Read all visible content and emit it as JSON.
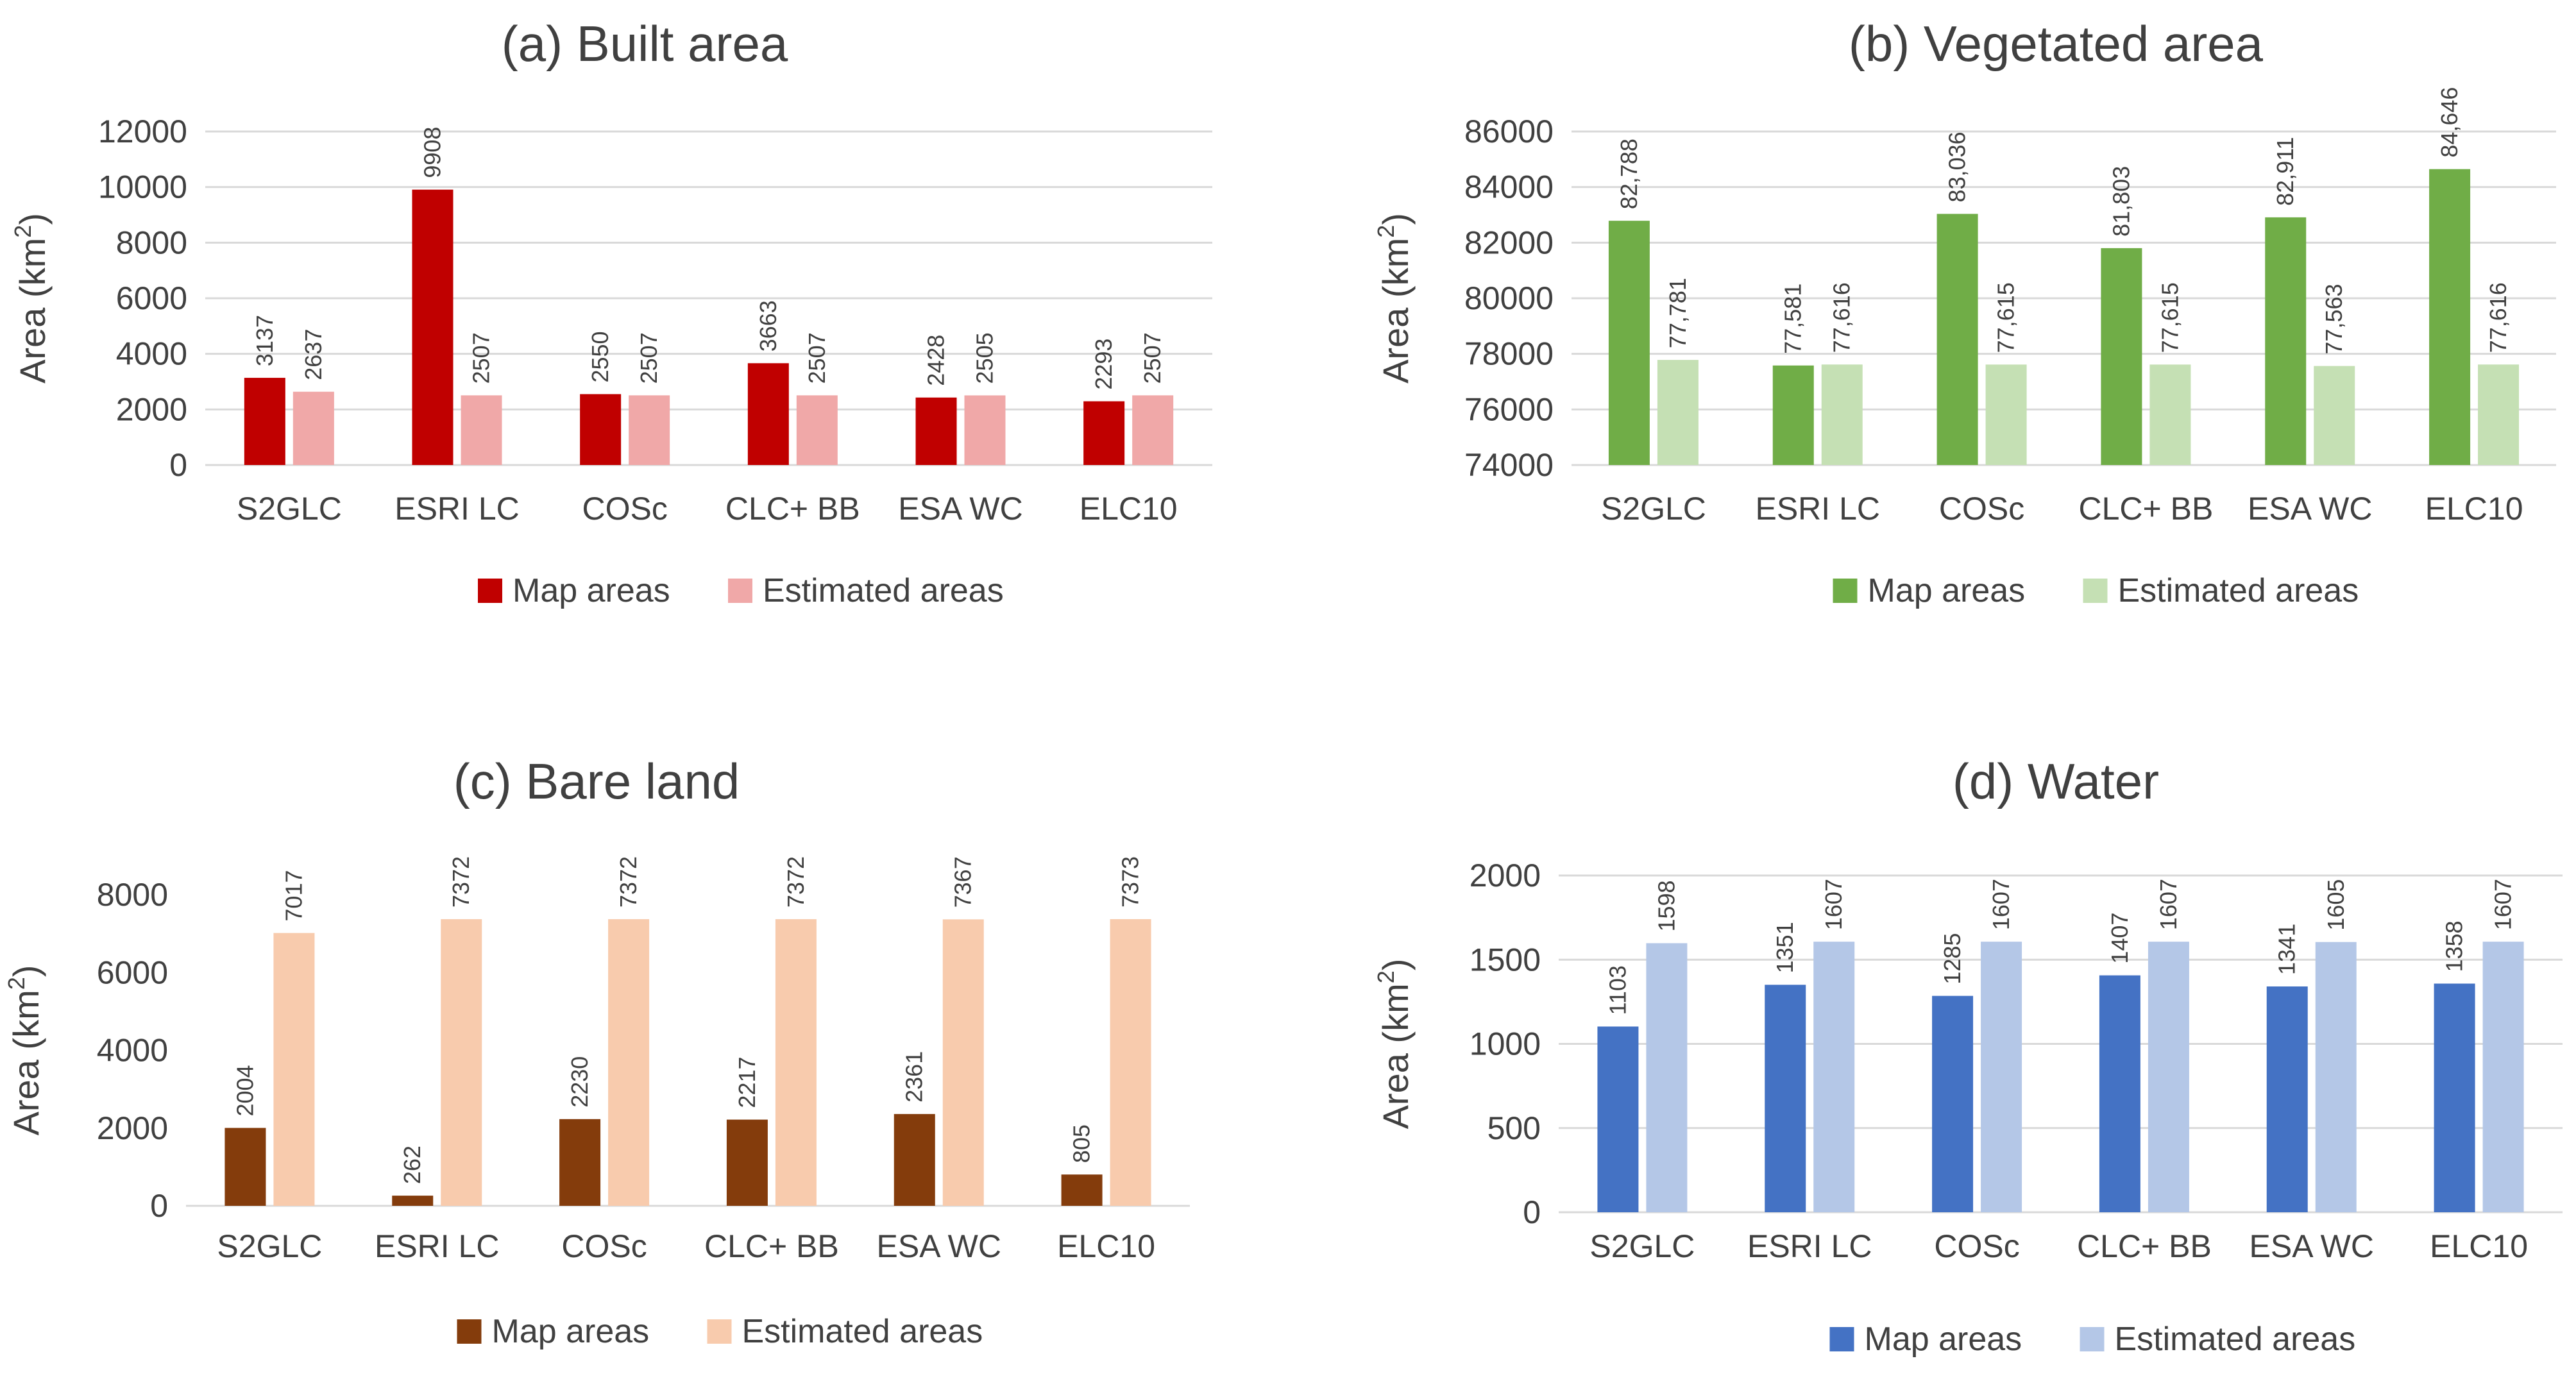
{
  "chart_data": [
    {
      "id": "a",
      "type": "bar",
      "title": "(a) Built area",
      "xlabel": "",
      "ylabel_main": "Area (km",
      "ylabel_sup": "2",
      "ylabel_close": ")",
      "categories": [
        "S2GLC",
        "ESRI LC",
        "COSc",
        "CLC+ BB",
        "ESA WC",
        "ELC10"
      ],
      "ylim": [
        0,
        12000
      ],
      "yticks": [
        0,
        2000,
        4000,
        6000,
        8000,
        10000,
        12000
      ],
      "ytick_labels": [
        "0",
        "2000",
        "4000",
        "6000",
        "8000",
        "10000",
        "12000"
      ],
      "grid": true,
      "legend": "bottom",
      "series": [
        {
          "name": "Map areas",
          "color": "#c00000",
          "values": [
            3137,
            9908,
            2550,
            3663,
            2428,
            2293
          ],
          "labels": [
            "3137",
            "9908",
            "2550",
            "3663",
            "2428",
            "2293"
          ]
        },
        {
          "name": "Estimated areas",
          "color": "#f0a8a8",
          "values": [
            2637,
            2507,
            2507,
            2507,
            2505,
            2507
          ],
          "labels": [
            "2637",
            "2507",
            "2507",
            "2507",
            "2505",
            "2507"
          ]
        }
      ]
    },
    {
      "id": "b",
      "type": "bar",
      "title": "(b) Vegetated area",
      "xlabel": "",
      "ylabel_main": "Area (km",
      "ylabel_sup": "2",
      "ylabel_close": ")",
      "categories": [
        "S2GLC",
        "ESRI LC",
        "COSc",
        "CLC+ BB",
        "ESA WC",
        "ELC10"
      ],
      "ylim": [
        74000,
        86000
      ],
      "yticks": [
        74000,
        76000,
        78000,
        80000,
        82000,
        84000,
        86000
      ],
      "ytick_labels": [
        "74000",
        "76000",
        "78000",
        "80000",
        "82000",
        "84000",
        "86000"
      ],
      "grid": true,
      "legend": "bottom",
      "series": [
        {
          "name": "Map areas",
          "color": "#70ad47",
          "values": [
            82788,
            77581,
            83036,
            81803,
            82911,
            84646
          ],
          "labels": [
            "82,788",
            "77,581",
            "83,036",
            "81,803",
            "82,911",
            "84,646"
          ]
        },
        {
          "name": "Estimated areas",
          "color": "#c5e0b4",
          "values": [
            77781,
            77616,
            77615,
            77615,
            77563,
            77616
          ],
          "labels": [
            "77,781",
            "77,616",
            "77,615",
            "77,615",
            "77,563",
            "77,616"
          ]
        }
      ]
    },
    {
      "id": "c",
      "type": "bar",
      "title": "(c) Bare land",
      "xlabel": "",
      "ylabel_main": "Area (km",
      "ylabel_sup": "2",
      "ylabel_close": ")",
      "categories": [
        "S2GLC",
        "ESRI LC",
        "COSc",
        "CLC+ BB",
        "ESA WC",
        "ELC10"
      ],
      "ylim": [
        0,
        8000
      ],
      "yticks": [
        0,
        2000,
        4000,
        6000,
        8000
      ],
      "ytick_labels": [
        "0",
        "2000",
        "4000",
        "6000",
        "8000"
      ],
      "grid": false,
      "legend": "bottom",
      "series": [
        {
          "name": "Map areas",
          "color": "#843c0c",
          "values": [
            2004,
            262,
            2230,
            2217,
            2361,
            805
          ],
          "labels": [
            "2004",
            "262",
            "2230",
            "2217",
            "2361",
            "805"
          ]
        },
        {
          "name": "Estimated areas",
          "color": "#f8cbad",
          "values": [
            7017,
            7372,
            7372,
            7372,
            7367,
            7373
          ],
          "labels": [
            "7017",
            "7372",
            "7372",
            "7372",
            "7367",
            "7373"
          ]
        }
      ]
    },
    {
      "id": "d",
      "type": "bar",
      "title": "(d) Water",
      "xlabel": "",
      "ylabel_main": "Area (km",
      "ylabel_sup": "2",
      "ylabel_close": ")",
      "categories": [
        "S2GLC",
        "ESRI LC",
        "COSc",
        "CLC+ BB",
        "ESA WC",
        "ELC10"
      ],
      "ylim": [
        0,
        2000
      ],
      "yticks": [
        0,
        500,
        1000,
        1500,
        2000
      ],
      "ytick_labels": [
        "0",
        "500",
        "1000",
        "1500",
        "2000"
      ],
      "grid": true,
      "legend": "bottom",
      "series": [
        {
          "name": "Map areas",
          "color": "#4472c4",
          "values": [
            1103,
            1351,
            1285,
            1407,
            1341,
            1358
          ],
          "labels": [
            "1103",
            "1351",
            "1285",
            "1407",
            "1341",
            "1358"
          ]
        },
        {
          "name": "Estimated areas",
          "color": "#b4c7e7",
          "values": [
            1598,
            1607,
            1607,
            1607,
            1605,
            1607
          ],
          "labels": [
            "1598",
            "1607",
            "1607",
            "1607",
            "1605",
            "1607"
          ]
        }
      ]
    }
  ]
}
